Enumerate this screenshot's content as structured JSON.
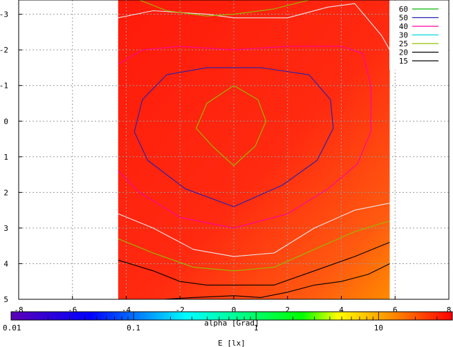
{
  "chart_data": {
    "type": "contour",
    "xlabel": "alpha [Grad]",
    "colorbar_label": "E [lx]",
    "xlim": [
      -8,
      8
    ],
    "ylim": [
      -3.4,
      5
    ],
    "y_reversed": true,
    "x_ticks": [
      -8,
      -6,
      -4,
      -2,
      0,
      2,
      4,
      6,
      8
    ],
    "x_tick_labels": [
      "-8",
      "-6",
      "-4",
      "-2",
      "0",
      "2",
      "4",
      "6",
      "8"
    ],
    "y_ticks": [
      -3,
      -2,
      -1,
      0,
      1,
      2,
      3,
      4,
      5
    ],
    "y_tick_labels": [
      "-3",
      "-2",
      "-1",
      "0",
      "1",
      "2",
      "3",
      "4",
      "5"
    ],
    "grid": true,
    "legend_position": "top-right",
    "data_extent": {
      "x": [
        -4.3,
        5.8
      ],
      "y": [
        -3.4,
        5
      ]
    },
    "colorbar": {
      "scale": "log",
      "range": [
        0.01,
        40
      ],
      "tick_labels": [
        "0.01",
        "0.1",
        "1",
        "10"
      ],
      "tick_values": [
        0.01,
        0.1,
        1,
        10
      ],
      "colors": [
        "#5b00b4",
        "#0000ff",
        "#00ffff",
        "#00ff00",
        "#ffff00",
        "#ff8000",
        "#ff0000"
      ]
    },
    "series": [
      {
        "name": "60",
        "color": "#8fbf00",
        "level": 60,
        "points": [
          [
            0,
            -1
          ],
          [
            0.9,
            -0.6
          ],
          [
            1.2,
            0
          ],
          [
            0.8,
            0.7
          ],
          [
            0,
            1.25
          ],
          [
            -0.8,
            0.7
          ],
          [
            -1.4,
            0.2
          ],
          [
            -1.0,
            -0.5
          ],
          [
            0,
            -1
          ]
        ]
      },
      {
        "name": "50",
        "color": "#2020b0",
        "level": 50,
        "points": [
          [
            -3.7,
            0.3
          ],
          [
            -3.4,
            -0.6
          ],
          [
            -2.5,
            -1.3
          ],
          [
            -1,
            -1.5
          ],
          [
            1,
            -1.5
          ],
          [
            2.8,
            -1.3
          ],
          [
            3.6,
            -0.6
          ],
          [
            3.7,
            0.2
          ],
          [
            3.1,
            1.1
          ],
          [
            1.8,
            1.8
          ],
          [
            0,
            2.4
          ],
          [
            -1.8,
            1.9
          ],
          [
            -3.2,
            1.1
          ],
          [
            -3.7,
            0.3
          ]
        ]
      },
      {
        "name": "40",
        "color": "#ff00a0",
        "level": 40,
        "points": [
          [
            -4.3,
            -1.6
          ],
          [
            -3.4,
            -2.0
          ],
          [
            -2,
            -2.1
          ],
          [
            0,
            -2.0
          ],
          [
            2,
            -2.1
          ],
          [
            4,
            -2.1
          ],
          [
            4.8,
            -1.9
          ],
          [
            5.1,
            -1.0
          ],
          [
            5.1,
            0.3
          ],
          [
            4.6,
            1.2
          ],
          [
            3.5,
            1.9
          ],
          [
            2,
            2.6
          ],
          [
            0,
            3.0
          ],
          [
            -2,
            2.7
          ],
          [
            -3.5,
            2.0
          ],
          [
            -4.3,
            1.4
          ]
        ]
      },
      {
        "name": "30",
        "color": "#e8e8e8",
        "level": 30,
        "points": [
          [
            -4.3,
            -2.9
          ],
          [
            -3,
            -3.1
          ],
          [
            -1,
            -3.0
          ],
          [
            0,
            -2.9
          ],
          [
            2,
            -2.9
          ],
          [
            3.5,
            -3.2
          ],
          [
            4.5,
            -3.3
          ],
          [
            5.5,
            -2.4
          ],
          [
            5.8,
            -2.0
          ]
        ]
      },
      {
        "name": "30b",
        "color": "#e8e8e8",
        "level": 30,
        "points": [
          [
            -4.3,
            2.6
          ],
          [
            -3,
            3.0
          ],
          [
            -1.5,
            3.6
          ],
          [
            0,
            3.8
          ],
          [
            1.5,
            3.7
          ],
          [
            3,
            3.0
          ],
          [
            4.5,
            2.5
          ],
          [
            5.8,
            2.3
          ]
        ]
      },
      {
        "name": "25",
        "color": "#8fbf00",
        "level": 25,
        "points": [
          [
            -3.5,
            -3.4
          ],
          [
            -2.5,
            -3.1
          ],
          [
            -1,
            -2.95
          ],
          [
            0,
            -3.0
          ],
          [
            1.5,
            -3.15
          ],
          [
            2.8,
            -3.4
          ]
        ]
      },
      {
        "name": "25b",
        "color": "#8fbf00",
        "level": 25,
        "points": [
          [
            -4.3,
            3.3
          ],
          [
            -3,
            3.7
          ],
          [
            -1.5,
            4.1
          ],
          [
            0,
            4.2
          ],
          [
            1.5,
            4.1
          ],
          [
            3,
            3.6
          ],
          [
            4.5,
            3.1
          ],
          [
            5.8,
            2.8
          ]
        ]
      },
      {
        "name": "20",
        "color": "#000000",
        "level": 20,
        "points": [
          [
            -4.3,
            3.9
          ],
          [
            -3,
            4.2
          ],
          [
            -2,
            4.5
          ],
          [
            -1,
            4.6
          ],
          [
            0,
            4.6
          ],
          [
            1.5,
            4.6
          ],
          [
            3,
            4.2
          ],
          [
            4.5,
            3.8
          ],
          [
            5.8,
            3.4
          ]
        ]
      },
      {
        "name": "15",
        "color": "#000000",
        "level": 15,
        "points": [
          [
            -2.6,
            5
          ],
          [
            -1.5,
            4.95
          ],
          [
            0,
            4.9
          ],
          [
            1,
            4.95
          ],
          [
            2,
            4.8
          ],
          [
            3,
            4.6
          ],
          [
            4,
            4.5
          ],
          [
            5,
            4.3
          ],
          [
            5.8,
            4.0
          ]
        ]
      }
    ],
    "legend": [
      {
        "label": "60",
        "color": "#00b400"
      },
      {
        "label": "50",
        "color": "#2020b0"
      },
      {
        "label": "40",
        "color": "#ff00a0"
      },
      {
        "label": "30",
        "color": "#00d8d8"
      },
      {
        "label": "25",
        "color": "#8fbf00"
      },
      {
        "label": "20",
        "color": "#000000"
      },
      {
        "label": "15",
        "color": "#000000"
      }
    ]
  }
}
